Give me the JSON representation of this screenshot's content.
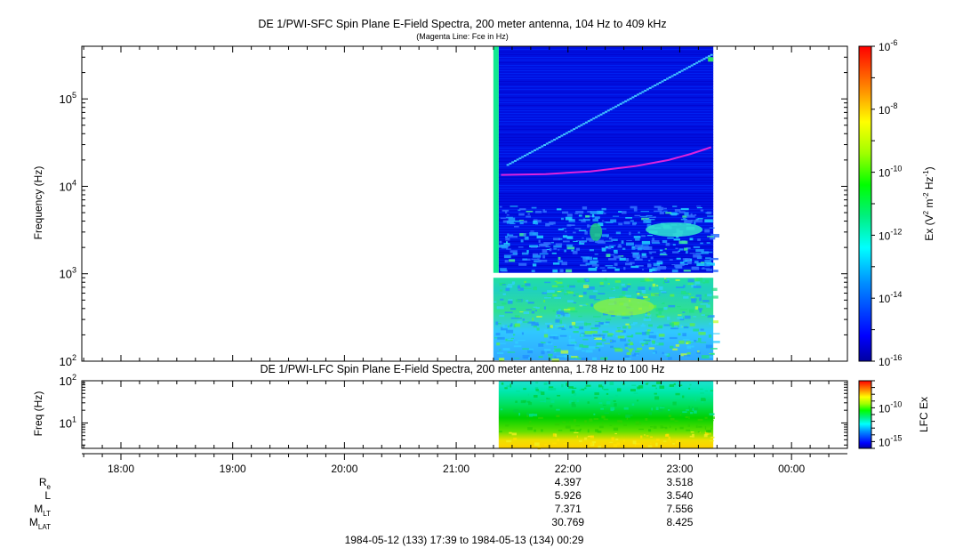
{
  "chart_data": [
    {
      "type": "heatmap",
      "title": "DE 1/PWI-SFC  Spin Plane E-Field Spectra, 200 meter antenna, 104 Hz to 409 kHz",
      "subtitle": "(Magenta Line: Fce in Hz)",
      "ylabel": "Frequency (Hz)",
      "yscale": "log",
      "ylim": [
        100,
        400000
      ],
      "yticks": [
        {
          "base": "10",
          "exp": "2",
          "value": 100
        },
        {
          "base": "10",
          "exp": "3",
          "value": 1000
        },
        {
          "base": "10",
          "exp": "4",
          "value": 10000
        },
        {
          "base": "10",
          "exp": "5",
          "value": 100000
        }
      ],
      "data_extent_hours": [
        21.38,
        23.3
      ],
      "colorbar": {
        "label_main": "Ex (V",
        "label_sup1": "2",
        "label_mid": " m",
        "label_sup2": "-2",
        "label_hz": " Hz",
        "label_sup3": "-1",
        "label_close": ")",
        "scale": "log",
        "range": [
          1e-16,
          1e-06
        ],
        "ticks": [
          {
            "base": "10",
            "exp": "-6",
            "value": -6
          },
          {
            "base": "10",
            "exp": "-8",
            "value": -8
          },
          {
            "base": "10",
            "exp": "-10",
            "value": -10
          },
          {
            "base": "10",
            "exp": "-12",
            "value": -12
          },
          {
            "base": "10",
            "exp": "-14",
            "value": -14
          },
          {
            "base": "10",
            "exp": "-16",
            "value": -16
          }
        ]
      },
      "fce_line": {
        "color": "#dd22dd",
        "x": [
          21.4,
          21.8,
          22.2,
          22.6,
          22.9,
          23.1,
          23.28
        ],
        "y": [
          13500,
          13800,
          14800,
          17000,
          20000,
          23500,
          28000
        ]
      },
      "colors": {
        "low": "#0000a0",
        "mid": "#00e0a0",
        "high": "#ff2000"
      }
    },
    {
      "type": "heatmap",
      "title": "DE 1/PWI-LFC  Spin Plane E-Field Spectra, 200 meter antenna, 1.78 Hz to 100 Hz",
      "ylabel": "Freq (Hz)",
      "yscale": "log",
      "ylim": [
        2.5,
        100
      ],
      "yticks": [
        {
          "base": "10",
          "exp": "1",
          "value": 10
        },
        {
          "base": "10",
          "exp": "2",
          "value": 100
        }
      ],
      "data_extent_hours": [
        21.38,
        23.3
      ],
      "colorbar": {
        "label": "LFC Ex",
        "scale": "log",
        "range": [
          1e-16,
          1e-06
        ],
        "ticks": [
          {
            "base": "10",
            "exp": "-10",
            "value": -10
          },
          {
            "base": "10",
            "exp": "-15",
            "value": -15
          }
        ]
      }
    }
  ],
  "time_axis": {
    "range_hours": [
      17.65,
      24.5
    ],
    "ticks": [
      {
        "label": "18:00",
        "value": 18
      },
      {
        "label": "19:00",
        "value": 19
      },
      {
        "label": "20:00",
        "value": 20
      },
      {
        "label": "21:00",
        "value": 21
      },
      {
        "label": "22:00",
        "value": 22
      },
      {
        "label": "23:00",
        "value": 23
      },
      {
        "label": "00:00",
        "value": 24
      }
    ]
  },
  "ephemeris": [
    {
      "name": "R",
      "sub": "e",
      "values": [
        "4.397",
        "3.518"
      ]
    },
    {
      "name": "L",
      "sub": "",
      "values": [
        "5.926",
        "3.540"
      ]
    },
    {
      "name": "M",
      "sub": "LT",
      "values": [
        "7.371",
        "7.556"
      ]
    },
    {
      "name": "M",
      "sub": "LAT",
      "values": [
        "30.769",
        "8.425"
      ]
    }
  ],
  "time_range": "1984-05-12 (133) 17:39 to 1984-05-13 (134) 00:29"
}
